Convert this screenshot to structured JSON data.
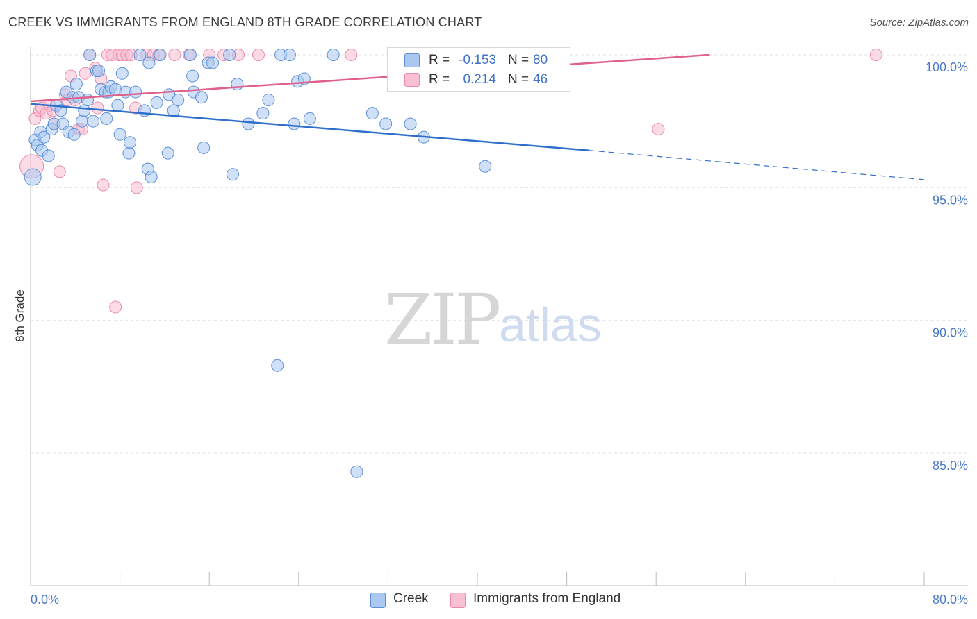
{
  "title": "CREEK VS IMMIGRANTS FROM ENGLAND 8TH GRADE CORRELATION CHART",
  "source": "Source: ZipAtlas.com",
  "watermark": {
    "zip": "ZIP",
    "atlas": "atlas"
  },
  "legend": {
    "rows": [
      {
        "r_label": "R =",
        "r_value": "-0.153",
        "n_label": "N =",
        "n_value": "80"
      },
      {
        "r_label": "R =",
        "r_value": "0.214",
        "n_label": "N =",
        "n_value": "46"
      }
    ]
  },
  "bottom_legend": {
    "series1": "Creek",
    "series2": "Immigrants from England"
  },
  "colors": {
    "creek_fill": "#aac8f0",
    "creek_stroke": "#5b8fd8",
    "creek_line": "#2f6fcc",
    "eng_fill": "#f8c0d2",
    "eng_stroke": "#ec8aab",
    "eng_line": "#e0608c",
    "tick_text": "#4a78c8",
    "grid": "#e2e2e2"
  },
  "chart_data": {
    "type": "scatter",
    "title": "CREEK VS IMMIGRANTS FROM ENGLAND 8TH GRADE CORRELATION CHART",
    "xlabel": "",
    "ylabel": "8th Grade",
    "xlim": [
      0,
      80
    ],
    "ylim": [
      80.5,
      100.8
    ],
    "x_tick_labels": [
      "0.0%",
      "80.0%"
    ],
    "y_ticks": [
      {
        "value": 100,
        "label": "100.0%"
      },
      {
        "value": 95,
        "label": "95.0%"
      },
      {
        "value": 90,
        "label": "90.0%"
      },
      {
        "value": 85,
        "label": "85.0%"
      }
    ],
    "series": [
      {
        "name": "Creek",
        "R": -0.153,
        "N": 80,
        "trend": {
          "x0": 0,
          "y0": 98.15,
          "x1": 50,
          "y1": 96.4,
          "dash_to_x": 80,
          "dash_to_y": 95.3
        },
        "points": [
          [
            0.2,
            95.4
          ],
          [
            0.4,
            96.8
          ],
          [
            0.6,
            96.6
          ],
          [
            0.9,
            97.1
          ],
          [
            1.0,
            96.4
          ],
          [
            1.2,
            96.9
          ],
          [
            1.6,
            96.2
          ],
          [
            1.9,
            97.2
          ],
          [
            2.1,
            97.4
          ],
          [
            2.3,
            98.1
          ],
          [
            2.7,
            97.9
          ],
          [
            2.9,
            97.4
          ],
          [
            3.2,
            98.6
          ],
          [
            3.4,
            97.1
          ],
          [
            3.8,
            98.4
          ],
          [
            3.9,
            97.0
          ],
          [
            4.1,
            98.9
          ],
          [
            4.3,
            98.4
          ],
          [
            4.6,
            97.5
          ],
          [
            4.8,
            97.9
          ],
          [
            5.1,
            98.3
          ],
          [
            5.3,
            100.0
          ],
          [
            5.6,
            97.5
          ],
          [
            5.9,
            99.4
          ],
          [
            6.1,
            99.4
          ],
          [
            6.3,
            98.7
          ],
          [
            6.7,
            98.6
          ],
          [
            6.8,
            97.6
          ],
          [
            7.0,
            98.6
          ],
          [
            7.2,
            98.8
          ],
          [
            7.6,
            98.7
          ],
          [
            7.8,
            98.1
          ],
          [
            8.0,
            97.0
          ],
          [
            8.2,
            99.3
          ],
          [
            8.5,
            98.6
          ],
          [
            8.8,
            96.3
          ],
          [
            8.9,
            96.7
          ],
          [
            9.4,
            98.6
          ],
          [
            9.8,
            100.0
          ],
          [
            10.2,
            97.9
          ],
          [
            10.5,
            95.7
          ],
          [
            10.6,
            99.7
          ],
          [
            10.8,
            95.4
          ],
          [
            11.3,
            98.2
          ],
          [
            11.6,
            100.0
          ],
          [
            12.3,
            96.3
          ],
          [
            12.4,
            98.5
          ],
          [
            12.8,
            97.9
          ],
          [
            13.2,
            98.3
          ],
          [
            14.3,
            100.0
          ],
          [
            14.5,
            99.2
          ],
          [
            14.6,
            98.6
          ],
          [
            15.3,
            98.4
          ],
          [
            15.5,
            96.5
          ],
          [
            15.9,
            99.7
          ],
          [
            16.3,
            99.7
          ],
          [
            17.8,
            100.0
          ],
          [
            18.1,
            95.5
          ],
          [
            18.5,
            98.9
          ],
          [
            19.5,
            97.4
          ],
          [
            20.8,
            97.8
          ],
          [
            21.3,
            98.3
          ],
          [
            22.1,
            88.3
          ],
          [
            22.4,
            100.0
          ],
          [
            23.2,
            100.0
          ],
          [
            23.6,
            97.4
          ],
          [
            23.9,
            99.0
          ],
          [
            24.5,
            99.1
          ],
          [
            25.0,
            97.6
          ],
          [
            27.1,
            100.0
          ],
          [
            29.2,
            84.3
          ],
          [
            30.6,
            97.8
          ],
          [
            31.8,
            97.4
          ],
          [
            34.0,
            97.4
          ],
          [
            35.2,
            96.9
          ],
          [
            40.7,
            95.8
          ]
        ]
      },
      {
        "name": "Immigrants from England",
        "R": 0.214,
        "N": 46,
        "trend": {
          "x0": 0,
          "y0": 98.25,
          "x1": 60.8,
          "y1": 100.0
        },
        "points": [
          [
            0.1,
            95.8
          ],
          [
            0.4,
            97.6
          ],
          [
            0.8,
            97.9
          ],
          [
            1.0,
            98.0
          ],
          [
            1.4,
            97.8
          ],
          [
            1.7,
            98.1
          ],
          [
            2.0,
            97.9
          ],
          [
            2.1,
            97.4
          ],
          [
            2.6,
            95.6
          ],
          [
            3.1,
            98.5
          ],
          [
            3.3,
            98.3
          ],
          [
            3.6,
            99.2
          ],
          [
            4.0,
            98.3
          ],
          [
            4.3,
            97.2
          ],
          [
            4.6,
            97.2
          ],
          [
            4.9,
            99.3
          ],
          [
            5.3,
            100.0
          ],
          [
            5.8,
            99.5
          ],
          [
            6.0,
            98.0
          ],
          [
            6.3,
            99.1
          ],
          [
            6.5,
            95.1
          ],
          [
            6.9,
            100.0
          ],
          [
            7.3,
            100.0
          ],
          [
            7.6,
            90.5
          ],
          [
            7.9,
            100.0
          ],
          [
            8.2,
            100.0
          ],
          [
            8.6,
            100.0
          ],
          [
            9.0,
            100.0
          ],
          [
            9.4,
            98.0
          ],
          [
            9.5,
            95.0
          ],
          [
            10.4,
            100.0
          ],
          [
            11.0,
            100.0
          ],
          [
            11.5,
            100.0
          ],
          [
            12.9,
            100.0
          ],
          [
            14.2,
            100.0
          ],
          [
            16.0,
            100.0
          ],
          [
            17.3,
            100.0
          ],
          [
            18.6,
            100.0
          ],
          [
            20.4,
            100.0
          ],
          [
            28.7,
            100.0
          ],
          [
            35.0,
            100.0
          ],
          [
            56.2,
            97.2
          ],
          [
            75.7,
            100.0
          ]
        ]
      }
    ]
  }
}
